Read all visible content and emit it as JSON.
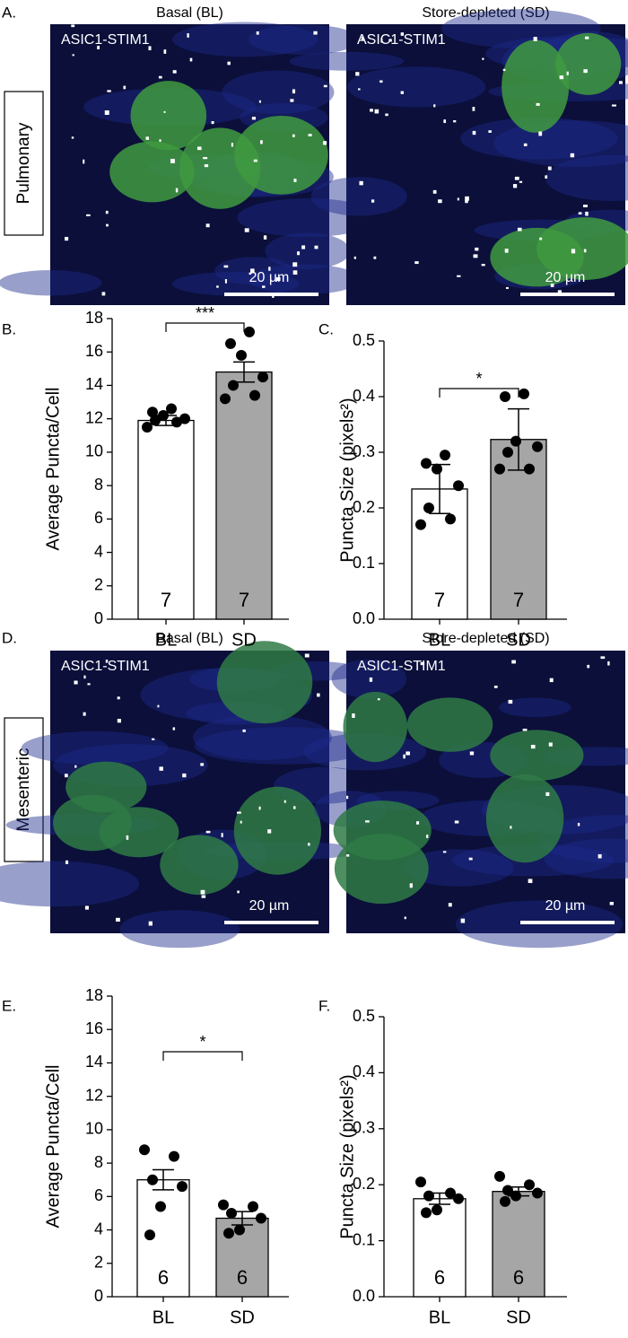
{
  "panels": [
    {
      "label": "A.",
      "region": "Pulmonary",
      "images": [
        {
          "title": "Basal (BL)",
          "stain": "ASIC1-STIM1",
          "scale": "20 µm"
        },
        {
          "title": "Store-depleted (SD)",
          "stain": "ASIC1-STIM1",
          "scale": "20 µm"
        }
      ]
    },
    {
      "label": "D.",
      "region": "Mesenteric",
      "images": [
        {
          "title": "Basal (BL)",
          "stain": "ASIC1-STIM1",
          "scale": "20 µm"
        },
        {
          "title": "Store-depleted (SD)",
          "stain": "ASIC1-STIM1",
          "scale": "20 µm"
        }
      ]
    }
  ],
  "chart_data": [
    {
      "type": "bar",
      "label": "B.",
      "y_label": "Average Puncta/Cell",
      "categories": [
        "BL",
        "SD"
      ],
      "values": [
        11.9,
        14.8
      ],
      "errors": [
        0.3,
        0.6
      ],
      "colors": [
        "#ffffff",
        "#a6a6a6"
      ],
      "n": [
        7,
        7
      ],
      "points": [
        [
          11.5,
          11.8,
          11.9,
          12.0,
          12.2,
          12.4,
          12.6
        ],
        [
          13.2,
          13.4,
          14.0,
          14.5,
          15.8,
          16.5,
          17.2
        ]
      ],
      "significance": "***",
      "ylim": [
        0,
        18
      ],
      "yticks": [
        0,
        2,
        4,
        6,
        8,
        10,
        12,
        14,
        16,
        18
      ]
    },
    {
      "type": "bar",
      "label": "C.",
      "y_label": "Puncta Size (pixels²)",
      "categories": [
        "BL",
        "SD"
      ],
      "values": [
        0.234,
        0.323
      ],
      "errors": [
        0.044,
        0.055
      ],
      "colors": [
        "#ffffff",
        "#a6a6a6"
      ],
      "n": [
        7,
        7
      ],
      "points": [
        [
          0.17,
          0.18,
          0.2,
          0.24,
          0.27,
          0.28,
          0.295
        ],
        [
          0.27,
          0.27,
          0.3,
          0.31,
          0.32,
          0.4,
          0.405
        ]
      ],
      "significance": "*",
      "ylim": [
        0,
        0.5
      ],
      "yticks": [
        {
          "value": 0,
          "label": "0.0"
        },
        0.1,
        0.2,
        0.3,
        0.4,
        0.5
      ]
    },
    {
      "type": "bar",
      "label": "E.",
      "y_label": "Average Puncta/Cell",
      "categories": [
        "BL",
        "SD"
      ],
      "values": [
        7.0,
        4.7
      ],
      "errors": [
        0.6,
        0.4
      ],
      "colors": [
        "#ffffff",
        "#a6a6a6"
      ],
      "n": [
        6,
        6
      ],
      "points": [
        [
          8.8,
          8.4,
          7.0,
          6.6,
          5.4,
          3.7
        ],
        [
          5.5,
          5.4,
          5.0,
          4.7,
          4.0,
          3.8
        ]
      ],
      "significance": "*",
      "ylim": [
        0,
        18
      ],
      "yticks": [
        0,
        2,
        4,
        6,
        8,
        10,
        12,
        14,
        16,
        18
      ]
    },
    {
      "type": "bar",
      "label": "F.",
      "y_label": "Puncta Size (pixels²)",
      "categories": [
        "BL",
        "SD"
      ],
      "values": [
        0.175,
        0.188
      ],
      "errors": [
        0.01,
        0.008
      ],
      "colors": [
        "#ffffff",
        "#a6a6a6"
      ],
      "n": [
        6,
        6
      ],
      "points": [
        [
          0.205,
          0.185,
          0.18,
          0.175,
          0.155,
          0.15
        ],
        [
          0.215,
          0.2,
          0.19,
          0.185,
          0.18,
          0.17
        ]
      ],
      "ylim": [
        0,
        0.5
      ],
      "yticks": [
        {
          "value": 0,
          "label": "0.0"
        },
        0.1,
        0.2,
        0.3,
        0.4,
        0.5
      ]
    }
  ]
}
